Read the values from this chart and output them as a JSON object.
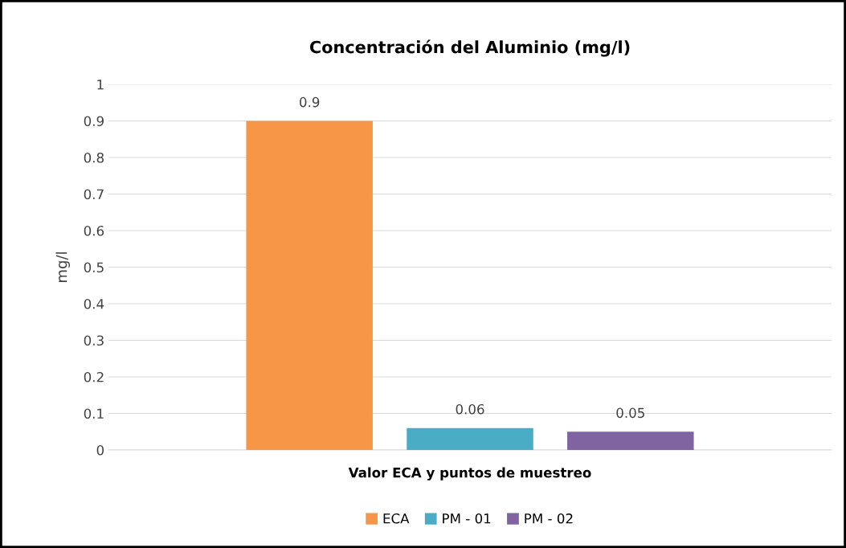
{
  "chart_data": {
    "type": "bar",
    "title": "Concentración del Aluminio (mg/l)",
    "xlabel": "Valor ECA y puntos de muestreo",
    "ylabel": "mg/l",
    "categories": [
      null
    ],
    "series": [
      {
        "name": "ECA",
        "color": "#f79646",
        "values": [
          0.9
        ]
      },
      {
        "name": "PM - 01",
        "color": "#4bacc6",
        "values": [
          0.06
        ]
      },
      {
        "name": "PM - 02",
        "color": "#8064a2",
        "values": [
          0.05
        ]
      }
    ],
    "ylim": [
      0,
      1
    ],
    "yticks": [
      0,
      0.1,
      0.2,
      0.3,
      0.4,
      0.5,
      0.6,
      0.7,
      0.8,
      0.9,
      1
    ],
    "grid": "y",
    "legend": "bottom",
    "data_labels": true
  }
}
